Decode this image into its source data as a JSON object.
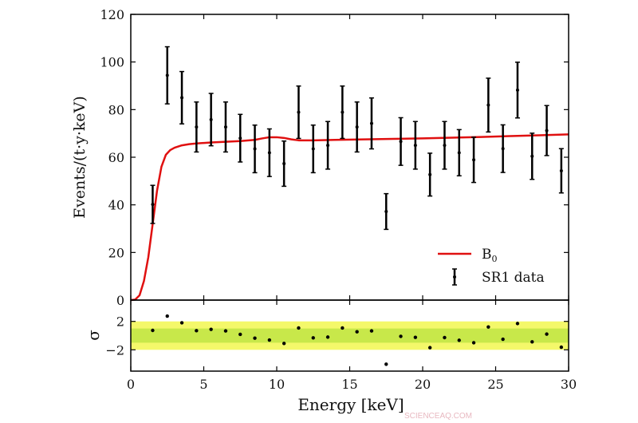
{
  "chart_data": [
    {
      "panel": "main",
      "type": "scatter",
      "xlabel": "Energy [keV]",
      "ylabel": "Events/(t·y·keV)",
      "xlim": [
        0,
        30
      ],
      "ylim": [
        0,
        120
      ],
      "xticks": [
        "0",
        "5",
        "10",
        "15",
        "20",
        "25",
        "30"
      ],
      "yticks": [
        "0",
        "20",
        "40",
        "60",
        "80",
        "100",
        "120"
      ],
      "legend_position": "bottom-right",
      "grid": false,
      "series": [
        {
          "name": "SR1 data",
          "type": "errorbar",
          "color": "#000000",
          "x": [
            1.5,
            2.5,
            3.5,
            4.5,
            5.5,
            6.5,
            7.5,
            8.5,
            9.5,
            10.5,
            11.5,
            12.5,
            13.5,
            14.5,
            15.5,
            16.5,
            17.5,
            18.5,
            19.5,
            20.5,
            21.5,
            22.5,
            23.5,
            24.5,
            25.5,
            26.5,
            27.5,
            28.5,
            29.5
          ],
          "y": [
            40.2,
            94.4,
            85,
            72.7,
            75.8,
            72.7,
            68,
            63.5,
            61.9,
            57.3,
            78.9,
            63.5,
            65,
            78.9,
            72.7,
            74.2,
            37.2,
            66.6,
            65,
            52.7,
            65,
            61.9,
            58.9,
            81.9,
            63.6,
            88.2,
            60.4,
            71.2,
            54.3
          ],
          "yerr": [
            8,
            12,
            11,
            10.5,
            11,
            10.5,
            10,
            10,
            10,
            9.5,
            11,
            10,
            10,
            11,
            10.5,
            10.7,
            7.5,
            10,
            10,
            9,
            10,
            9.7,
            9.5,
            11.3,
            10,
            11.7,
            9.7,
            10.5,
            9.3
          ]
        },
        {
          "name": "B₀",
          "label_base": "B",
          "label_sub": "0",
          "type": "line",
          "color": "#e01010",
          "x": [
            0,
            0.3,
            0.6,
            0.9,
            1.2,
            1.5,
            1.8,
            2.1,
            2.4,
            2.7,
            3.0,
            3.5,
            4.0,
            4.5,
            5.5,
            6.5,
            7.5,
            8.5,
            9.0,
            9.5,
            10.0,
            10.5,
            11.0,
            11.5,
            12.5,
            14,
            16,
            18,
            20,
            22,
            24,
            26,
            28,
            30
          ],
          "y": [
            0,
            0.2,
            2,
            8,
            18,
            32,
            46,
            56,
            61,
            63,
            64,
            65,
            65.5,
            65.8,
            66.2,
            66.5,
            66.8,
            67.3,
            67.9,
            68.4,
            68.4,
            68.1,
            67.5,
            67.1,
            67.1,
            67.3,
            67.5,
            67.7,
            67.9,
            68.2,
            68.5,
            68.9,
            69.2,
            69.6
          ]
        }
      ]
    },
    {
      "panel": "residuals",
      "type": "scatter",
      "ylabel": "σ",
      "xlim": [
        0,
        30
      ],
      "ylim": [
        -5,
        5
      ],
      "yticks": [
        "2",
        "−2"
      ],
      "bands": [
        {
          "range": [
            -2,
            2
          ],
          "color": "#f4f86a"
        },
        {
          "range": [
            -1,
            1
          ],
          "color": "#c8e84a"
        }
      ],
      "series": [
        {
          "color": "#000000",
          "x": [
            1.5,
            2.5,
            3.5,
            4.5,
            5.5,
            6.5,
            7.5,
            8.5,
            9.5,
            10.5,
            11.5,
            12.5,
            13.5,
            14.5,
            15.5,
            16.5,
            17.5,
            18.5,
            19.5,
            20.5,
            21.5,
            22.5,
            23.5,
            24.5,
            25.5,
            26.5,
            27.5,
            28.5,
            29.5
          ],
          "y": [
            0.73,
            2.75,
            1.81,
            0.69,
            0.88,
            0.66,
            0.17,
            -0.36,
            -0.62,
            -1.1,
            1.07,
            -0.32,
            -0.21,
            1.07,
            0.54,
            0.66,
            -4.03,
            -0.1,
            -0.25,
            -1.7,
            -0.28,
            -0.66,
            -1.0,
            1.22,
            -0.51,
            1.7,
            -0.88,
            0.21,
            -1.63
          ]
        }
      ]
    }
  ],
  "watermark": "SCIENCEAQ.COM"
}
